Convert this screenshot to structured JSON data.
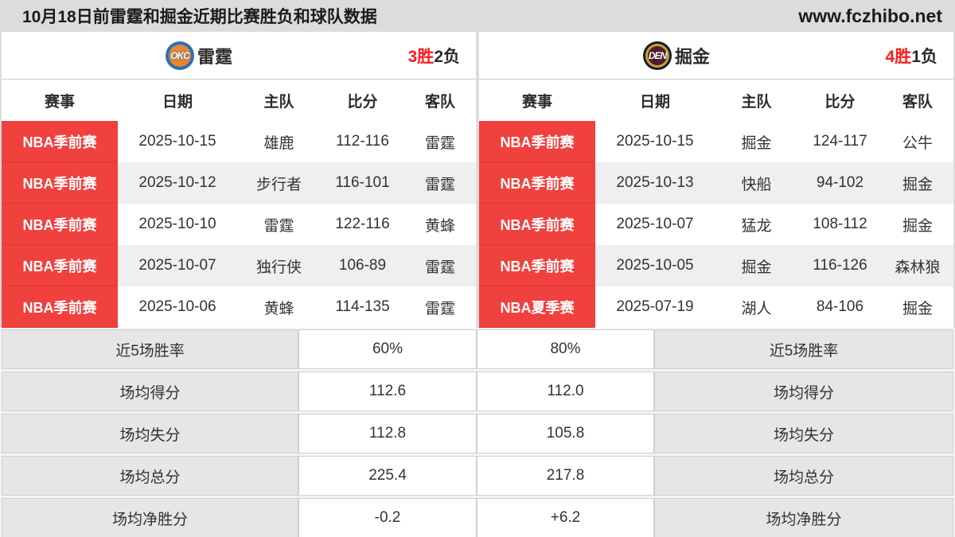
{
  "page": {
    "title": "10月18日前雷霆和掘金近期比赛胜负和球队数据",
    "site": "www.fczhibo.net"
  },
  "columns": [
    "赛事",
    "日期",
    "主队",
    "比分",
    "客队"
  ],
  "colors": {
    "league_badge_red": "#f0413e",
    "wins_red": "#ff1a1a",
    "row_alt_grey": "#efefef",
    "stat_label_grey": "#e6e6e6",
    "okc_blue": "#2a6fba",
    "okc_orange": "#e8862d",
    "den_navy": "#0f1c2e",
    "den_gold": "#c9a227"
  },
  "teams": [
    {
      "logo_text": "OKC",
      "name": "雷霆",
      "record_wins": "3胜",
      "record_losses": "2负",
      "matches": [
        {
          "league": "NBA季前赛",
          "date": "2025-10-15",
          "home": "雄鹿",
          "score": "112-116",
          "away": "雷霆"
        },
        {
          "league": "NBA季前赛",
          "date": "2025-10-12",
          "home": "步行者",
          "score": "116-101",
          "away": "雷霆"
        },
        {
          "league": "NBA季前赛",
          "date": "2025-10-10",
          "home": "雷霆",
          "score": "122-116",
          "away": "黄蜂"
        },
        {
          "league": "NBA季前赛",
          "date": "2025-10-07",
          "home": "独行侠",
          "score": "106-89",
          "away": "雷霆"
        },
        {
          "league": "NBA季前赛",
          "date": "2025-10-06",
          "home": "黄蜂",
          "score": "114-135",
          "away": "雷霆"
        }
      ]
    },
    {
      "logo_text": "DEN",
      "name": "掘金",
      "record_wins": "4胜",
      "record_losses": "1负",
      "matches": [
        {
          "league": "NBA季前赛",
          "date": "2025-10-15",
          "home": "掘金",
          "score": "124-117",
          "away": "公牛"
        },
        {
          "league": "NBA季前赛",
          "date": "2025-10-13",
          "home": "快船",
          "score": "94-102",
          "away": "掘金"
        },
        {
          "league": "NBA季前赛",
          "date": "2025-10-07",
          "home": "猛龙",
          "score": "108-112",
          "away": "掘金"
        },
        {
          "league": "NBA季前赛",
          "date": "2025-10-05",
          "home": "掘金",
          "score": "116-126",
          "away": "森林狼"
        },
        {
          "league": "NBA夏季赛",
          "date": "2025-07-19",
          "home": "湖人",
          "score": "84-106",
          "away": "掘金"
        }
      ]
    }
  ],
  "stats": {
    "rows": [
      {
        "label": "近5场胜率",
        "left": "60%",
        "right": "80%"
      },
      {
        "label": "场均得分",
        "left": "112.6",
        "right": "112.0"
      },
      {
        "label": "场均失分",
        "left": "112.8",
        "right": "105.8"
      },
      {
        "label": "场均总分",
        "left": "225.4",
        "right": "217.8"
      },
      {
        "label": "场均净胜分",
        "left": "-0.2",
        "right": "+6.2"
      }
    ]
  }
}
